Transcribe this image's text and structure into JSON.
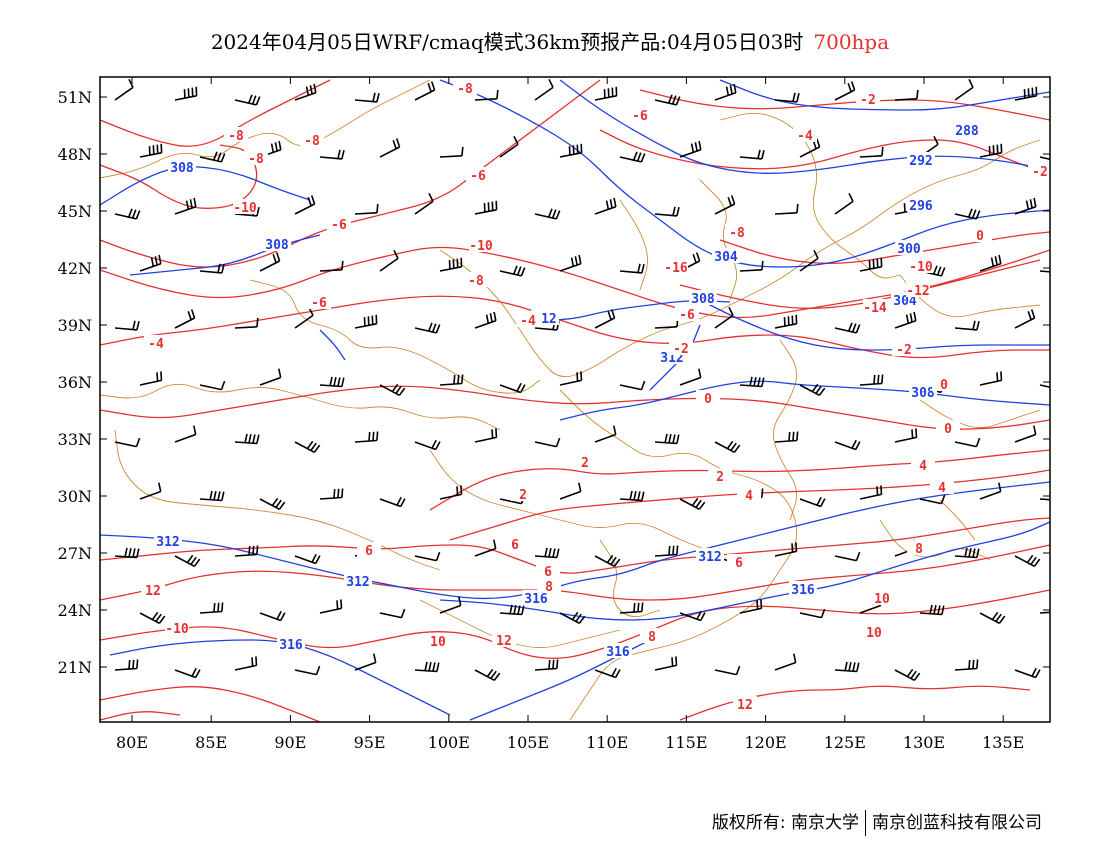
{
  "title": {
    "main": "2024年04月05日WRF/cmaq模式36km预报产品:04月05日03时",
    "level": "700hpa"
  },
  "colors": {
    "temperature": "#e53030",
    "geopotential": "#2040e0",
    "boundary": "#d08a3a",
    "wind": "#000000",
    "frame": "#000000"
  },
  "axes": {
    "lon_labels": [
      "80E",
      "85E",
      "90E",
      "95E",
      "100E",
      "105E",
      "110E",
      "115E",
      "120E",
      "125E",
      "130E",
      "135E"
    ],
    "lat_labels": [
      "51N",
      "48N",
      "45N",
      "42N",
      "39N",
      "36N",
      "33N",
      "30N",
      "27N",
      "24N",
      "21N"
    ]
  },
  "geopotential_labels": [
    "308",
    "308",
    "288",
    "292",
    "296",
    "300",
    "304",
    "304",
    "308",
    "312",
    "312",
    "308",
    "312",
    "312",
    "312",
    "316",
    "316",
    "316",
    "316"
  ],
  "temperature_labels": [
    "-8",
    "-8",
    "-8",
    "-8",
    "-10",
    "-6",
    "-6",
    "-6",
    "-4",
    "-2",
    "-2",
    "0",
    "-8",
    "-10",
    "-12",
    "-16",
    "-14",
    "-10",
    "-8",
    "-6",
    "-6",
    "-4",
    "-4",
    "-2",
    "-2",
    "0",
    "0",
    "0",
    "2",
    "2",
    "4",
    "2",
    "4",
    "4",
    "6",
    "6",
    "8",
    "6",
    "6",
    "8",
    "10",
    "12",
    "10",
    "12",
    "-10",
    "8",
    "10",
    "12"
  ],
  "footer": {
    "left": "版权所有: 南京大学",
    "right": "南京创蓝科技有限公司"
  }
}
